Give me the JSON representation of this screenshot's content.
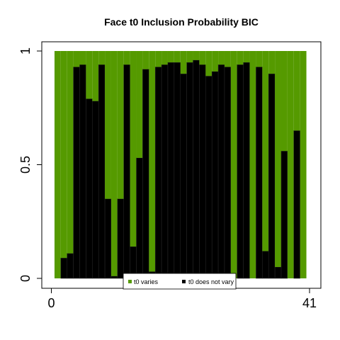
{
  "chart_data": {
    "type": "bar",
    "stacked": true,
    "title": "Face t0 Inclusion Probability BIC",
    "xlabel": "",
    "ylabel": "",
    "xlim": [
      0,
      41
    ],
    "ylim": [
      0,
      1
    ],
    "x_ticks": [
      {
        "value": 0,
        "label": "0"
      },
      {
        "value": 41,
        "label": "41"
      }
    ],
    "y_ticks": [
      {
        "value": 0,
        "label": "0"
      },
      {
        "value": 0.5,
        "label": "0.5"
      },
      {
        "value": 1,
        "label": "1"
      }
    ],
    "categories": [
      1,
      2,
      3,
      4,
      5,
      6,
      7,
      8,
      9,
      10,
      11,
      12,
      13,
      14,
      15,
      16,
      17,
      18,
      19,
      20,
      21,
      22,
      23,
      24,
      25,
      26,
      27,
      28,
      29,
      30,
      31,
      32,
      33,
      34,
      35,
      36,
      37,
      38,
      39,
      40
    ],
    "series": [
      {
        "name": "t0 does not vary",
        "color": "#000000",
        "values": [
          0.0,
          0.09,
          0.11,
          0.93,
          0.94,
          0.79,
          0.78,
          0.94,
          0.35,
          0.01,
          0.35,
          0.94,
          0.14,
          0.53,
          0.92,
          0.03,
          0.93,
          0.94,
          0.95,
          0.95,
          0.9,
          0.95,
          0.96,
          0.94,
          0.89,
          0.91,
          0.94,
          0.93,
          0.0,
          0.94,
          0.95,
          0.0,
          0.93,
          0.12,
          0.9,
          0.05,
          0.56,
          0.0,
          0.65,
          0.0
        ]
      },
      {
        "name": "t0 varies",
        "color": "#559a00",
        "values": [
          1.0,
          0.91,
          0.89,
          0.07,
          0.06,
          0.21,
          0.22,
          0.06,
          0.65,
          0.99,
          0.65,
          0.06,
          0.86,
          0.47,
          0.08,
          0.97,
          0.07,
          0.06,
          0.05,
          0.05,
          0.1,
          0.05,
          0.04,
          0.06,
          0.11,
          0.09,
          0.06,
          0.07,
          1.0,
          0.06,
          0.05,
          1.0,
          0.07,
          0.88,
          0.1,
          0.95,
          0.44,
          1.0,
          0.35,
          1.0
        ]
      }
    ],
    "legend": {
      "placement": "bottom-center",
      "entries": [
        {
          "label": "t0 varies",
          "color": "#559a00"
        },
        {
          "label": "t0 does not vary",
          "color": "#000000"
        }
      ]
    },
    "grid": false
  }
}
